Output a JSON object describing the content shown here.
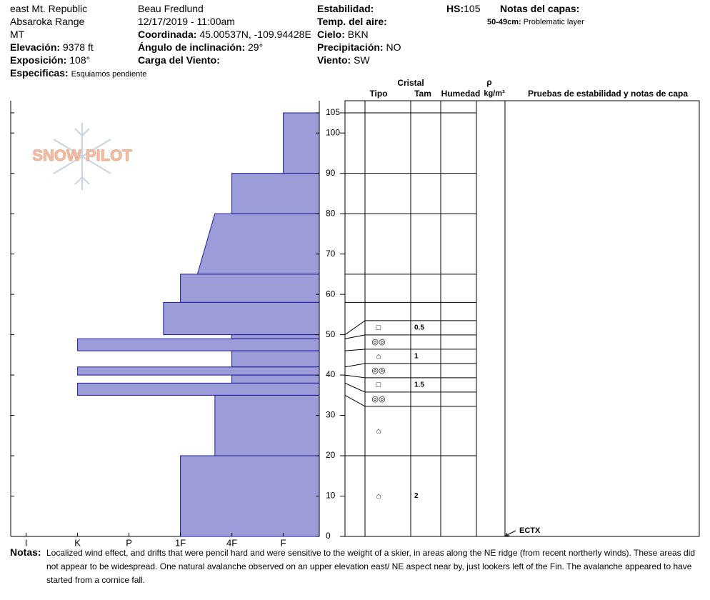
{
  "header": {
    "location": "east Mt. Republic",
    "range": "Absaroka Range",
    "state": "MT",
    "elevation": {
      "label": "Elevación:",
      "value": "9378 ft"
    },
    "aspect": {
      "label": "Exposición:",
      "value": "108°"
    },
    "specifics": {
      "label": "Especificas:",
      "value": "Esquiamos pendiente"
    },
    "observer": "Beau  Fredlund",
    "datetime": "12/17/2019 - 11:00am",
    "coordinates": {
      "label": "Coordinada:",
      "value": "45.00537N, -109.94428E"
    },
    "slope": {
      "label": "Ángulo de inclinación:",
      "value": "29°"
    },
    "wind_loading": {
      "label": "Carga del Viento:"
    },
    "stability": {
      "label": "Estabilidad:"
    },
    "air_temp": {
      "label": "Temp. del aire:"
    },
    "sky": {
      "label": "Cielo:",
      "value": "BKN"
    },
    "precipitation": {
      "label": "Precipitación:",
      "value": "NO"
    },
    "wind": {
      "label": "Viento:",
      "value": "SW"
    },
    "hs": {
      "label": "HS:",
      "value": "105"
    },
    "layer_notes": {
      "title": "Notas del capas:",
      "items": [
        {
          "label": "50-49cm:",
          "text": "Problematic layer"
        }
      ]
    }
  },
  "logo": "SNOW PILOT",
  "profile_table": {
    "crystal": "Cristal",
    "type": "Tipo",
    "size": "Tam",
    "moisture": "Humedad",
    "density_symbol": "ρ",
    "density_unit": "kg/m³",
    "tests": "Pruebas de estabilidad y notas de capa"
  },
  "chart_data": {
    "type": "snow-profile",
    "xlim": [
      6.3,
      0.3
    ],
    "xticks": [
      {
        "value": 6,
        "label": "I"
      },
      {
        "value": 5,
        "label": "K"
      },
      {
        "value": 4,
        "label": "P"
      },
      {
        "value": 3,
        "label": "1F"
      },
      {
        "value": 2,
        "label": "4F"
      },
      {
        "value": 1,
        "label": "F"
      }
    ],
    "ylim": [
      0,
      108
    ],
    "yticks": [
      0,
      10,
      20,
      30,
      40,
      50,
      60,
      70,
      80,
      90,
      100,
      105
    ],
    "color": "#9c9cd8",
    "layers": [
      {
        "top": 105,
        "bottom": 90,
        "hardness": 1
      },
      {
        "top": 90,
        "bottom": 80,
        "hardness": 2
      },
      {
        "top": 80,
        "bottom": 65,
        "hardness": 2.33,
        "hardness_bottom": 2.67
      },
      {
        "top": 65,
        "bottom": 58,
        "hardness": 3
      },
      {
        "top": 58,
        "bottom": 50,
        "hardness": 3.33
      },
      {
        "top": 50,
        "bottom": 49,
        "hardness": 2,
        "grain": "□",
        "size": 0.5
      },
      {
        "top": 49,
        "bottom": 46,
        "hardness": 5,
        "grain": "◎◎"
      },
      {
        "top": 46,
        "bottom": 42,
        "hardness": 2,
        "grain": "⌂",
        "size": 1
      },
      {
        "top": 42,
        "bottom": 40,
        "hardness": 5,
        "grain": "◎◎"
      },
      {
        "top": 40,
        "bottom": 38,
        "hardness": 2,
        "grain": "□",
        "size": 1.5
      },
      {
        "top": 38,
        "bottom": 35,
        "hardness": 5,
        "grain": "◎◎"
      },
      {
        "top": 35,
        "bottom": 20,
        "hardness": 2.33,
        "grain": "⌂"
      },
      {
        "top": 20,
        "bottom": 0,
        "hardness": 3,
        "grain": "⌂",
        "size": 2
      }
    ],
    "tests": [
      {
        "height": 0,
        "result": "ECTX"
      }
    ]
  },
  "notes": {
    "label": "Notas:",
    "text": "Localized wind effect, and drifts that were pencil hard and were sensitive to the weight of a skier, in areas along the NE ridge (from recent northerly winds).  These areas did not appear to be widespread.  One natural avalanche observed on an upper elevation east/ NE aspect near by, just lookers left of the Fin.  The avalanche appeared to have started from a cornice fall."
  }
}
